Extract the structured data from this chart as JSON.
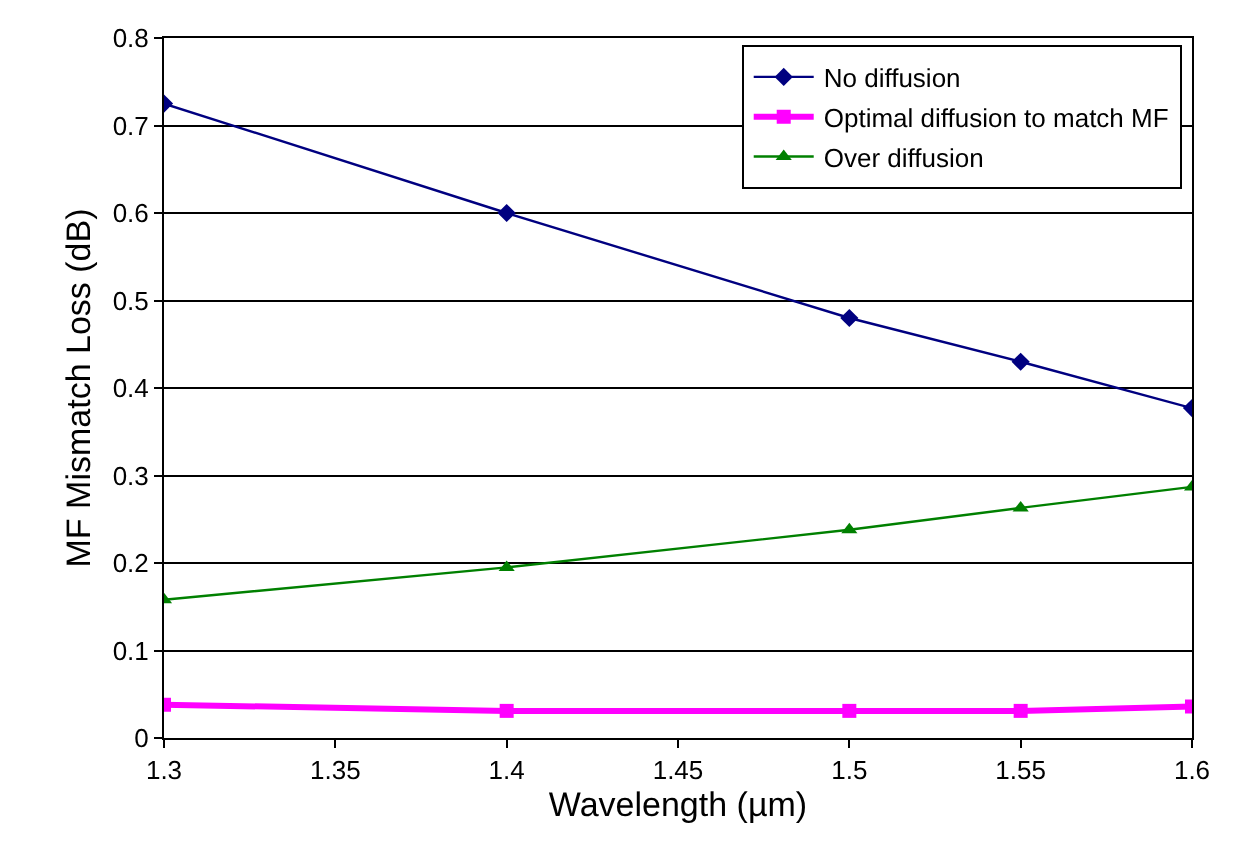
{
  "chart_data": {
    "type": "line",
    "xlabel": "Wavelength (µm)",
    "ylabel": "MF Mismatch Loss (dB)",
    "x": [
      1.3,
      1.4,
      1.5,
      1.55,
      1.6
    ],
    "series": [
      {
        "name": "No diffusion",
        "color": "#000080",
        "marker": "diamond",
        "values": [
          0.725,
          0.6,
          0.48,
          0.43,
          0.377
        ]
      },
      {
        "name": "Optimal diffusion to match MF",
        "color": "#ff00ff",
        "marker": "square",
        "values": [
          0.038,
          0.031,
          0.031,
          0.031,
          0.036
        ]
      },
      {
        "name": "Over diffusion",
        "color": "#008000",
        "marker": "triangle",
        "values": [
          0.158,
          0.195,
          0.238,
          0.263,
          0.287
        ]
      }
    ],
    "xlim": [
      1.3,
      1.6
    ],
    "xticks": [
      1.3,
      1.35,
      1.4,
      1.45,
      1.5,
      1.55,
      1.6
    ],
    "ylim": [
      0,
      0.8
    ],
    "yticks": [
      0,
      0.1,
      0.2,
      0.3,
      0.4,
      0.5,
      0.6,
      0.7,
      0.8
    ],
    "grid": "y",
    "legend": "top right",
    "line_style": "solid"
  }
}
